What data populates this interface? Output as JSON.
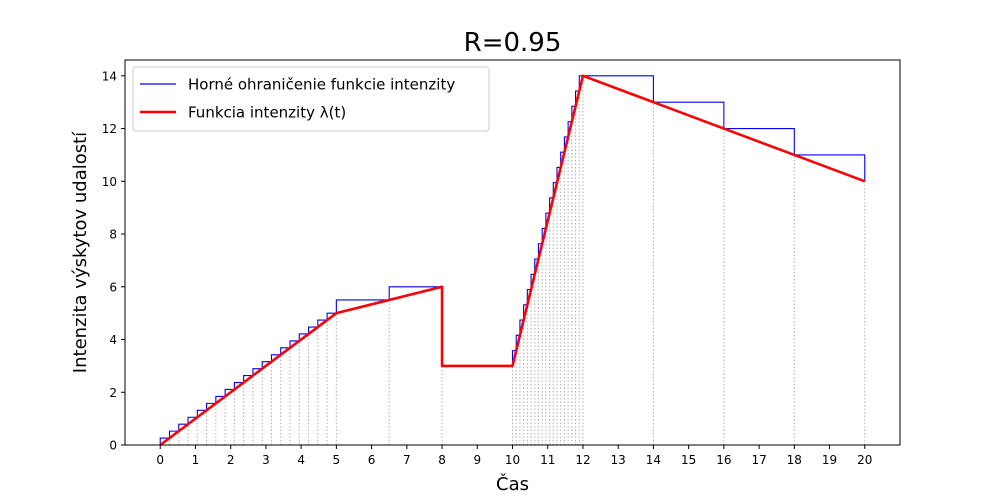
{
  "chart_data": {
    "type": "line",
    "title": "R=0.95",
    "xlabel": "Čas",
    "ylabel": "Intenzita výskytov udalostí",
    "xlim": [
      -1,
      21
    ],
    "ylim": [
      0,
      14.6
    ],
    "xticks": [
      0,
      1,
      2,
      3,
      4,
      5,
      6,
      7,
      8,
      9,
      10,
      11,
      12,
      13,
      14,
      15,
      16,
      17,
      18,
      19,
      20
    ],
    "yticks": [
      0,
      2,
      4,
      6,
      8,
      10,
      12,
      14
    ],
    "grid": false,
    "legend_position": "top-left",
    "legend": [
      {
        "label": "Horné ohraničenie funkcie intenzity",
        "color": "#0000ff"
      },
      {
        "label": "Funkcia intenzity λ(t)",
        "color": "#ff0000"
      }
    ],
    "series": [
      {
        "name": "Funkcia intenzity λ(t)",
        "color": "#ff0000",
        "points": [
          [
            0,
            0
          ],
          [
            5,
            5
          ],
          [
            8,
            6
          ],
          [
            8,
            3
          ],
          [
            10,
            3
          ],
          [
            12,
            14
          ],
          [
            14,
            13
          ],
          [
            16,
            12
          ],
          [
            18,
            11
          ],
          [
            20,
            10
          ]
        ]
      },
      {
        "name": "Horné ohraničenie funkcie intenzity",
        "color": "#0000ff",
        "breakpoints": [
          0,
          0.2632,
          0.5263,
          0.7895,
          1.0526,
          1.3158,
          1.5789,
          1.8421,
          2.1053,
          2.3684,
          2.6316,
          2.8947,
          3.1579,
          3.4211,
          3.6842,
          3.9474,
          4.2105,
          4.4737,
          4.7368,
          5.0,
          6.5,
          8.0,
          10.0,
          10.1053,
          10.2105,
          10.3158,
          10.4211,
          10.5263,
          10.6316,
          10.7368,
          10.8421,
          10.9474,
          11.0526,
          11.1579,
          11.2632,
          11.3684,
          11.4737,
          11.5789,
          11.6842,
          11.7895,
          11.8947,
          12.0,
          14.0,
          16.0,
          18.0,
          20.0
        ]
      }
    ]
  }
}
